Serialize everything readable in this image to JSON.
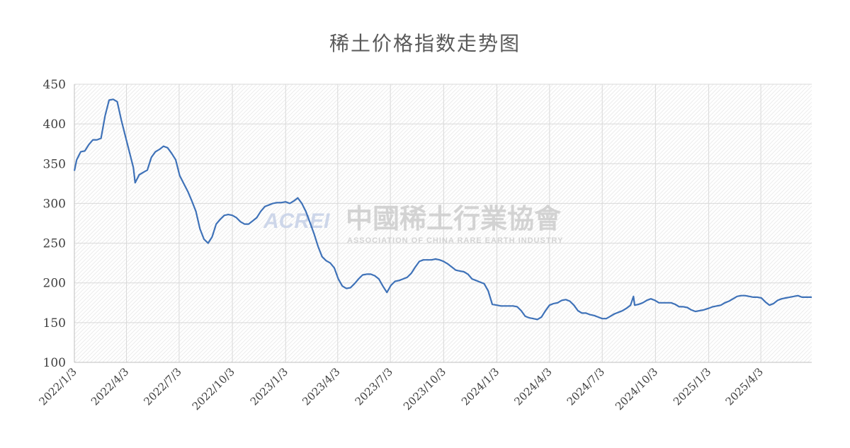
{
  "chart_data": {
    "type": "line",
    "title": "稀土价格指数走势图",
    "xlabel": "",
    "ylabel": "",
    "ylim": [
      100,
      450
    ],
    "yticks": [
      100,
      150,
      200,
      250,
      300,
      350,
      400,
      450
    ],
    "xticks": [
      "2022/1/3",
      "2022/4/3",
      "2022/7/3",
      "2022/10/3",
      "2023/1/3",
      "2023/4/3",
      "2023/7/3",
      "2023/10/3",
      "2024/1/3",
      "2024/4/3",
      "2024/7/3",
      "2024/10/3",
      "2025/1/3",
      "2025/4/3"
    ],
    "x_start": "2022/1/3",
    "x_end": "2025/6/30",
    "grid": true,
    "color": "#3f72b8",
    "series": [
      {
        "points": [
          [
            "2022/1/3",
            341
          ],
          [
            "2022/1/7",
            355
          ],
          [
            "2022/1/14",
            365
          ],
          [
            "2022/1/21",
            366
          ],
          [
            "2022/1/28",
            374
          ],
          [
            "2022/2/4",
            380
          ],
          [
            "2022/2/11",
            380
          ],
          [
            "2022/2/18",
            382
          ],
          [
            "2022/2/25",
            410
          ],
          [
            "2022/3/4",
            430
          ],
          [
            "2022/3/11",
            431
          ],
          [
            "2022/3/18",
            428
          ],
          [
            "2022/3/25",
            405
          ],
          [
            "2022/4/1",
            385
          ],
          [
            "2022/4/8",
            365
          ],
          [
            "2022/4/15",
            345
          ],
          [
            "2022/4/18",
            326
          ],
          [
            "2022/4/25",
            336
          ],
          [
            "2022/5/2",
            339
          ],
          [
            "2022/5/9",
            342
          ],
          [
            "2022/5/16",
            358
          ],
          [
            "2022/5/23",
            365
          ],
          [
            "2022/5/30",
            368
          ],
          [
            "2022/6/6",
            372
          ],
          [
            "2022/6/13",
            370
          ],
          [
            "2022/6/20",
            363
          ],
          [
            "2022/6/27",
            355
          ],
          [
            "2022/7/4",
            335
          ],
          [
            "2022/7/11",
            325
          ],
          [
            "2022/7/18",
            315
          ],
          [
            "2022/7/25",
            303
          ],
          [
            "2022/8/1",
            290
          ],
          [
            "2022/8/8",
            268
          ],
          [
            "2022/8/15",
            255
          ],
          [
            "2022/8/22",
            250
          ],
          [
            "2022/8/29",
            258
          ],
          [
            "2022/9/5",
            274
          ],
          [
            "2022/9/12",
            280
          ],
          [
            "2022/9/19",
            285
          ],
          [
            "2022/9/26",
            286
          ],
          [
            "2022/10/3",
            285
          ],
          [
            "2022/10/10",
            282
          ],
          [
            "2022/10/17",
            277
          ],
          [
            "2022/10/24",
            274
          ],
          [
            "2022/10/31",
            274
          ],
          [
            "2022/11/7",
            278
          ],
          [
            "2022/11/14",
            282
          ],
          [
            "2022/11/21",
            290
          ],
          [
            "2022/11/28",
            296
          ],
          [
            "2022/12/5",
            298
          ],
          [
            "2022/12/12",
            300
          ],
          [
            "2022/12/19",
            301
          ],
          [
            "2022/12/26",
            301
          ],
          [
            "2023/1/3",
            302
          ],
          [
            "2023/1/10",
            300
          ],
          [
            "2023/1/17",
            303
          ],
          [
            "2023/1/24",
            307
          ],
          [
            "2023/1/31",
            300
          ],
          [
            "2023/2/7",
            290
          ],
          [
            "2023/2/14",
            276
          ],
          [
            "2023/2/21",
            262
          ],
          [
            "2023/2/28",
            246
          ],
          [
            "2023/3/7",
            233
          ],
          [
            "2023/3/14",
            228
          ],
          [
            "2023/3/21",
            225
          ],
          [
            "2023/3/28",
            219
          ],
          [
            "2023/4/4",
            205
          ],
          [
            "2023/4/11",
            196
          ],
          [
            "2023/4/18",
            193
          ],
          [
            "2023/4/25",
            194
          ],
          [
            "2023/5/2",
            199
          ],
          [
            "2023/5/9",
            205
          ],
          [
            "2023/5/16",
            210
          ],
          [
            "2023/5/23",
            211
          ],
          [
            "2023/5/30",
            211
          ],
          [
            "2023/6/6",
            209
          ],
          [
            "2023/6/13",
            205
          ],
          [
            "2023/6/20",
            196
          ],
          [
            "2023/6/27",
            188
          ],
          [
            "2023/7/4",
            197
          ],
          [
            "2023/7/11",
            202
          ],
          [
            "2023/7/18",
            203
          ],
          [
            "2023/7/25",
            205
          ],
          [
            "2023/8/1",
            207
          ],
          [
            "2023/8/8",
            212
          ],
          [
            "2023/8/15",
            220
          ],
          [
            "2023/8/22",
            227
          ],
          [
            "2023/8/29",
            229
          ],
          [
            "2023/9/5",
            229
          ],
          [
            "2023/9/12",
            229
          ],
          [
            "2023/9/19",
            230
          ],
          [
            "2023/9/26",
            229
          ],
          [
            "2023/10/3",
            227
          ],
          [
            "2023/10/10",
            224
          ],
          [
            "2023/10/17",
            220
          ],
          [
            "2023/10/24",
            216
          ],
          [
            "2023/10/31",
            215
          ],
          [
            "2023/11/7",
            214
          ],
          [
            "2023/11/14",
            211
          ],
          [
            "2023/11/21",
            205
          ],
          [
            "2023/11/28",
            203
          ],
          [
            "2023/12/5",
            201
          ],
          [
            "2023/12/12",
            199
          ],
          [
            "2023/12/19",
            190
          ],
          [
            "2023/12/26",
            173
          ],
          [
            "2024/1/3",
            172
          ],
          [
            "2024/1/10",
            171
          ],
          [
            "2024/1/17",
            171
          ],
          [
            "2024/1/24",
            171
          ],
          [
            "2024/1/31",
            171
          ],
          [
            "2024/2/7",
            170
          ],
          [
            "2024/2/14",
            165
          ],
          [
            "2024/2/21",
            158
          ],
          [
            "2024/2/28",
            156
          ],
          [
            "2024/3/6",
            155
          ],
          [
            "2024/3/13",
            154
          ],
          [
            "2024/3/20",
            157
          ],
          [
            "2024/3/27",
            165
          ],
          [
            "2024/4/3",
            172
          ],
          [
            "2024/4/10",
            174
          ],
          [
            "2024/4/17",
            175
          ],
          [
            "2024/4/24",
            178
          ],
          [
            "2024/5/1",
            179
          ],
          [
            "2024/5/8",
            177
          ],
          [
            "2024/5/15",
            172
          ],
          [
            "2024/5/22",
            165
          ],
          [
            "2024/5/29",
            162
          ],
          [
            "2024/6/5",
            162
          ],
          [
            "2024/6/12",
            160
          ],
          [
            "2024/6/19",
            159
          ],
          [
            "2024/6/26",
            157
          ],
          [
            "2024/7/3",
            155
          ],
          [
            "2024/7/10",
            155
          ],
          [
            "2024/7/17",
            158
          ],
          [
            "2024/7/24",
            161
          ],
          [
            "2024/7/31",
            163
          ],
          [
            "2024/8/7",
            165
          ],
          [
            "2024/8/14",
            168
          ],
          [
            "2024/8/21",
            172
          ],
          [
            "2024/8/26",
            183
          ],
          [
            "2024/8/28",
            172
          ],
          [
            "2024/9/4",
            173
          ],
          [
            "2024/9/11",
            175
          ],
          [
            "2024/9/18",
            178
          ],
          [
            "2024/9/25",
            180
          ],
          [
            "2024/10/2",
            178
          ],
          [
            "2024/10/9",
            175
          ],
          [
            "2024/10/16",
            175
          ],
          [
            "2024/10/23",
            175
          ],
          [
            "2024/10/30",
            175
          ],
          [
            "2024/11/6",
            173
          ],
          [
            "2024/11/13",
            170
          ],
          [
            "2024/11/20",
            170
          ],
          [
            "2024/11/27",
            169
          ],
          [
            "2024/12/4",
            166
          ],
          [
            "2024/12/11",
            164
          ],
          [
            "2024/12/18",
            165
          ],
          [
            "2024/12/25",
            166
          ],
          [
            "2025/1/3",
            168
          ],
          [
            "2025/1/10",
            170
          ],
          [
            "2025/1/17",
            171
          ],
          [
            "2025/1/24",
            172
          ],
          [
            "2025/1/31",
            175
          ],
          [
            "2025/2/7",
            177
          ],
          [
            "2025/2/14",
            180
          ],
          [
            "2025/2/21",
            183
          ],
          [
            "2025/2/28",
            184
          ],
          [
            "2025/3/7",
            184
          ],
          [
            "2025/3/14",
            183
          ],
          [
            "2025/3/21",
            182
          ],
          [
            "2025/3/28",
            182
          ],
          [
            "2025/4/4",
            181
          ],
          [
            "2025/4/11",
            176
          ],
          [
            "2025/4/18",
            172
          ],
          [
            "2025/4/25",
            174
          ],
          [
            "2025/5/2",
            178
          ],
          [
            "2025/5/9",
            180
          ],
          [
            "2025/5/16",
            181
          ],
          [
            "2025/5/23",
            182
          ],
          [
            "2025/5/30",
            183
          ],
          [
            "2025/6/6",
            184
          ],
          [
            "2025/6/13",
            182
          ],
          [
            "2025/6/20",
            182
          ],
          [
            "2025/6/30",
            182
          ]
        ]
      }
    ]
  },
  "watermark": {
    "logo": "ACREI",
    "cn": "中國稀土行業協會",
    "en": "ASSOCIATION OF CHINA RARE EARTH INDUSTRY"
  }
}
